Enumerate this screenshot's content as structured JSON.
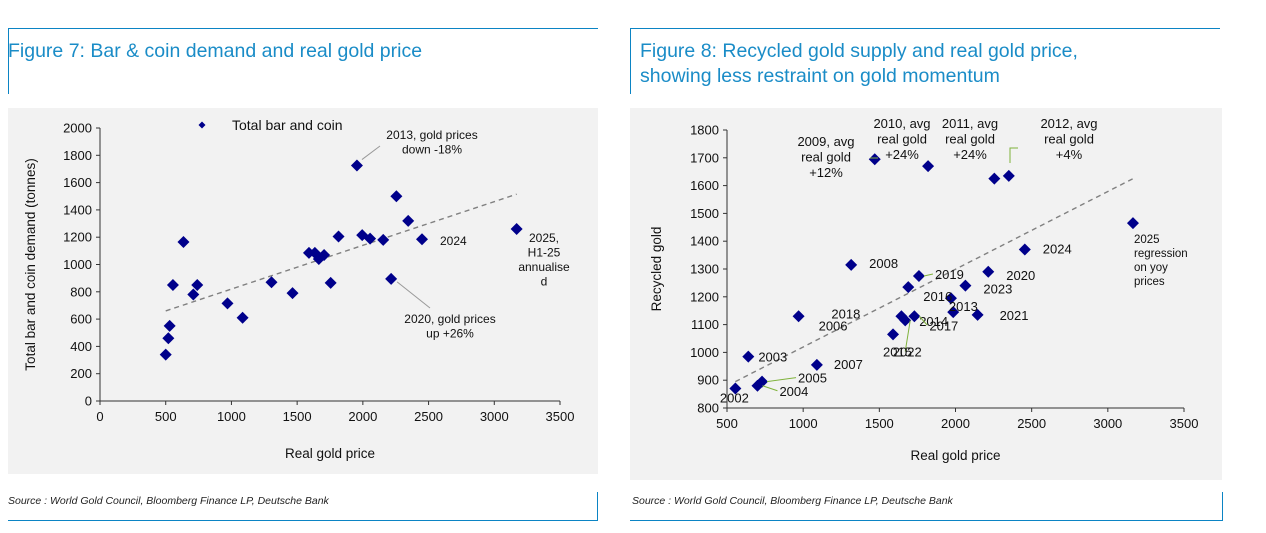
{
  "colors": {
    "accent": "#1a8cc7",
    "marker": "#00008b",
    "trend": "#808080",
    "leader": "#7fb23b"
  },
  "left": {
    "title": "Figure 7: Bar & coin demand and real gold price",
    "source": "Source : World Gold Council, Bloomberg Finance LP, Deutsche Bank"
  },
  "right": {
    "title_line1": "Figure 8: Recycled gold supply and real gold price,",
    "title_line2": "showing less restraint on gold momentum",
    "source": "Source : World Gold Council, Bloomberg Finance LP, Deutsche Bank"
  },
  "chart_data": [
    {
      "type": "scatter",
      "title": "Figure 7: Bar & coin demand and real gold price",
      "xlabel": "Real gold price",
      "ylabel": "Total bar and coin demand (tonnes)",
      "xlim": [
        0,
        3500
      ],
      "ylim": [
        0,
        2000
      ],
      "xticks": [
        0,
        500,
        1000,
        1500,
        2000,
        2500,
        3000,
        3500
      ],
      "yticks": [
        0,
        200,
        400,
        600,
        800,
        1000,
        1200,
        1400,
        1600,
        1800,
        2000
      ],
      "grid": false,
      "legend": {
        "position": "top-left",
        "label": "Total bar and coin"
      },
      "series": [
        {
          "name": "Total bar and coin",
          "points": [
            [
              500,
              340
            ],
            [
              520,
              460
            ],
            [
              530,
              550
            ],
            [
              555,
              850
            ],
            [
              635,
              1165
            ],
            [
              710,
              780
            ],
            [
              740,
              850
            ],
            [
              970,
              715
            ],
            [
              1085,
              610
            ],
            [
              1305,
              870
            ],
            [
              1465,
              790
            ],
            [
              1590,
              1085
            ],
            [
              1635,
              1085
            ],
            [
              1665,
              1040
            ],
            [
              1705,
              1070
            ],
            [
              1755,
              865
            ],
            [
              1815,
              1205
            ],
            [
              1955,
              1725
            ],
            [
              1995,
              1215
            ],
            [
              2055,
              1190
            ],
            [
              2155,
              1180
            ],
            [
              2215,
              895
            ],
            [
              2255,
              1500
            ],
            [
              2345,
              1320
            ],
            [
              2450,
              1185
            ],
            [
              3170,
              1260
            ]
          ]
        }
      ],
      "trendline": [
        [
          500,
          660
        ],
        [
          3170,
          1515
        ]
      ],
      "annotations": [
        {
          "lines": [
            "2013, gold prices",
            "down -18%"
          ]
        },
        {
          "lines": [
            "2020, gold prices",
            "up +26%"
          ]
        },
        {
          "lines": [
            "2024"
          ]
        },
        {
          "lines": [
            "2025,",
            "H1-25",
            "annualise",
            "d"
          ]
        }
      ]
    },
    {
      "type": "scatter",
      "title": "Figure 8: Recycled gold supply and real gold price, showing less restraint on gold momentum",
      "xlabel": "Real gold price",
      "ylabel": "Recycled gold",
      "xlim": [
        500,
        3500
      ],
      "ylim": [
        800,
        1800
      ],
      "xticks": [
        500,
        1000,
        1500,
        2000,
        2500,
        3000,
        3500
      ],
      "yticks": [
        800,
        900,
        1000,
        1100,
        1200,
        1300,
        1400,
        1500,
        1600,
        1700,
        1800
      ],
      "grid": false,
      "series": [
        {
          "points": [
            {
              "label": "2002",
              "x": 555,
              "y": 870
            },
            {
              "label": "2003",
              "x": 640,
              "y": 985
            },
            {
              "label": "2004",
              "x": 700,
              "y": 880
            },
            {
              "label": "2005",
              "x": 730,
              "y": 895
            },
            {
              "label": "2006",
              "x": 970,
              "y": 1130
            },
            {
              "label": "2007",
              "x": 1090,
              "y": 955
            },
            {
              "label": "2008",
              "x": 1315,
              "y": 1315
            },
            {
              "label": "2009",
              "x": 1470,
              "y": 1695
            },
            {
              "label": "2010",
              "x": 1820,
              "y": 1670
            },
            {
              "label": "2011",
              "x": 2255,
              "y": 1625
            },
            {
              "label": "2012",
              "x": 2350,
              "y": 1635
            },
            {
              "label": "2013",
              "x": 1970,
              "y": 1195
            },
            {
              "label": "2014",
              "x": 1985,
              "y": 1145
            },
            {
              "label": "2015",
              "x": 1590,
              "y": 1065
            },
            {
              "label": "2016",
              "x": 1690,
              "y": 1235
            },
            {
              "label": "2017",
              "x": 1730,
              "y": 1130
            },
            {
              "label": "2018",
              "x": 1645,
              "y": 1130
            },
            {
              "label": "2019",
              "x": 1760,
              "y": 1275
            },
            {
              "label": "2020",
              "x": 2215,
              "y": 1290
            },
            {
              "label": "2021",
              "x": 2145,
              "y": 1135
            },
            {
              "label": "2022",
              "x": 1670,
              "y": 1115
            },
            {
              "label": "2023",
              "x": 2065,
              "y": 1240
            },
            {
              "label": "2024",
              "x": 2455,
              "y": 1370
            },
            {
              "label": "2025",
              "x": 3165,
              "y": 1465
            }
          ]
        }
      ],
      "trendline": [
        [
          555,
          895
        ],
        [
          3165,
          1625
        ]
      ],
      "annotations": [
        {
          "lines": [
            "2009, avg",
            "real gold",
            "+12%"
          ]
        },
        {
          "lines": [
            "2010, avg",
            "real gold",
            "+24%"
          ]
        },
        {
          "lines": [
            "2011, avg",
            "real gold",
            "+24%"
          ]
        },
        {
          "lines": [
            "2012, avg",
            "real gold",
            "+4%"
          ]
        },
        {
          "lines": [
            "2025",
            "regression",
            "on yoy",
            "prices"
          ]
        }
      ]
    }
  ]
}
